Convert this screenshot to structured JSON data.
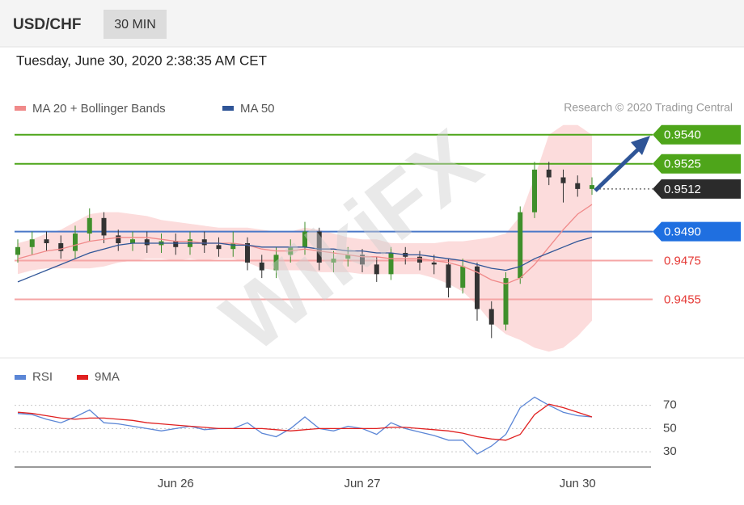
{
  "header": {
    "symbol": "USD/CHF",
    "interval": "30 MIN",
    "timestamp": "Tuesday, June 30, 2020 2:38:35 AM CET",
    "credit": "Research © 2020 Trading Central",
    "watermark": "WikiFX"
  },
  "chart_data": [
    {
      "type": "candlestick",
      "categories": [
        null,
        null,
        null,
        null,
        null,
        null,
        null,
        null,
        null,
        null,
        null,
        "Jun 26",
        null,
        null,
        null,
        null,
        null,
        null,
        null,
        null,
        null,
        null,
        null,
        null,
        "Jun 27",
        null,
        null,
        null,
        null,
        null,
        null,
        null,
        null,
        null,
        null,
        null,
        null,
        null,
        null,
        "Jun 30",
        null
      ],
      "open": [
        0.9478,
        0.9482,
        0.9486,
        0.9484,
        0.948,
        0.9489,
        0.9497,
        0.9488,
        0.9484,
        0.9486,
        0.9483,
        0.9485,
        0.9482,
        0.9486,
        0.9483,
        0.9481,
        0.9484,
        0.9474,
        0.947,
        0.9478,
        0.9482,
        0.949,
        0.9474,
        0.9476,
        0.9478,
        0.9473,
        0.9468,
        0.9479,
        0.9477,
        0.9474,
        0.9473,
        0.9461,
        0.9472,
        0.945,
        0.9442,
        0.9466,
        0.95,
        0.9522,
        0.9518,
        0.9515,
        0.9512
      ],
      "high": [
        0.9486,
        0.949,
        0.949,
        0.9488,
        0.9493,
        0.9502,
        0.95,
        0.9491,
        0.949,
        0.949,
        0.9489,
        0.9489,
        0.949,
        0.949,
        0.9487,
        0.949,
        0.9487,
        0.9478,
        0.9482,
        0.9486,
        0.9495,
        0.9492,
        0.948,
        0.9482,
        0.9481,
        0.9477,
        0.9482,
        0.9482,
        0.948,
        0.9478,
        0.9476,
        0.9476,
        0.9474,
        0.9454,
        0.9469,
        0.9503,
        0.9526,
        0.9526,
        0.9522,
        0.9519,
        0.9518
      ],
      "low": [
        0.9474,
        0.9478,
        0.948,
        0.9476,
        0.9476,
        0.9485,
        0.9484,
        0.948,
        0.948,
        0.9479,
        0.9479,
        0.9478,
        0.9478,
        0.9479,
        0.9477,
        0.9477,
        0.947,
        0.9466,
        0.9466,
        0.9474,
        0.9478,
        0.947,
        0.9469,
        0.9472,
        0.9469,
        0.9464,
        0.9465,
        0.9473,
        0.947,
        0.9468,
        0.9456,
        0.9458,
        0.9444,
        0.9435,
        0.9439,
        0.9463,
        0.9497,
        0.9514,
        0.9505,
        0.9508,
        0.9509
      ],
      "close": [
        0.9482,
        0.9486,
        0.9484,
        0.948,
        0.9489,
        0.9497,
        0.9488,
        0.9484,
        0.9486,
        0.9483,
        0.9485,
        0.9482,
        0.9486,
        0.9483,
        0.9481,
        0.9484,
        0.9474,
        0.947,
        0.9478,
        0.9482,
        0.949,
        0.9474,
        0.9476,
        0.9478,
        0.9473,
        0.9468,
        0.9479,
        0.9477,
        0.9474,
        0.9473,
        0.9461,
        0.9472,
        0.945,
        0.9442,
        0.9466,
        0.95,
        0.9522,
        0.9518,
        0.9515,
        0.9512,
        0.9514
      ],
      "up_color": "#3f8f2b",
      "down_color": "#333333",
      "ylim": [
        0.9426,
        0.9547
      ],
      "series": [
        {
          "name": "MA 20 + Bollinger Bands",
          "color": "#f08a8a",
          "band_color": "#fbd3d3",
          "values": [
            0.9476,
            0.9478,
            0.948,
            0.9481,
            0.9483,
            0.9485,
            0.9486,
            0.9487,
            0.9487,
            0.9487,
            0.9486,
            0.9485,
            0.9485,
            0.9484,
            0.9484,
            0.9484,
            0.9483,
            0.9481,
            0.948,
            0.948,
            0.9481,
            0.948,
            0.9479,
            0.9478,
            0.9477,
            0.9477,
            0.9476,
            0.9476,
            0.9476,
            0.9475,
            0.9474,
            0.9472,
            0.9469,
            0.9465,
            0.9463,
            0.9466,
            0.9473,
            0.9482,
            0.9491,
            0.9499,
            0.9504
          ],
          "upper": [
            0.9484,
            0.9486,
            0.9489,
            0.9491,
            0.9495,
            0.9499,
            0.95,
            0.95,
            0.9499,
            0.9498,
            0.9496,
            0.9495,
            0.9494,
            0.9493,
            0.9492,
            0.9492,
            0.9492,
            0.9491,
            0.949,
            0.949,
            0.9492,
            0.9491,
            0.9489,
            0.9487,
            0.9486,
            0.9486,
            0.9484,
            0.9484,
            0.9484,
            0.9484,
            0.9485,
            0.9485,
            0.9486,
            0.9487,
            0.9489,
            0.9498,
            0.9518,
            0.954,
            0.9545,
            0.9545,
            0.954
          ],
          "lower": [
            0.9468,
            0.947,
            0.9471,
            0.9471,
            0.9471,
            0.9471,
            0.9472,
            0.9474,
            0.9475,
            0.9476,
            0.9476,
            0.9475,
            0.9476,
            0.9475,
            0.9476,
            0.9476,
            0.9474,
            0.9471,
            0.947,
            0.947,
            0.947,
            0.9469,
            0.9469,
            0.9469,
            0.9468,
            0.9468,
            0.9468,
            0.9468,
            0.9468,
            0.9466,
            0.9463,
            0.9459,
            0.9452,
            0.9443,
            0.9437,
            0.9434,
            0.943,
            0.9428,
            0.943,
            0.9436,
            0.9444
          ]
        },
        {
          "name": "MA 50",
          "color": "#2f5597",
          "values": [
            0.9464,
            0.9467,
            0.947,
            0.9473,
            0.9476,
            0.9479,
            0.9481,
            0.9483,
            0.9484,
            0.9484,
            0.9484,
            0.9484,
            0.9484,
            0.9484,
            0.9484,
            0.9483,
            0.9483,
            0.9482,
            0.9482,
            0.9482,
            0.9482,
            0.9481,
            0.9481,
            0.948,
            0.948,
            0.9479,
            0.9479,
            0.9478,
            0.9478,
            0.9477,
            0.9476,
            0.9475,
            0.9473,
            0.9471,
            0.947,
            0.9472,
            0.9476,
            0.9479,
            0.9482,
            0.9485,
            0.9487
          ]
        }
      ],
      "levels": [
        {
          "value": 0.954,
          "label": "0.9540",
          "color": "#4ea51a",
          "line_color": "#4ea51a",
          "line": "solid",
          "box": true
        },
        {
          "value": 0.9525,
          "label": "0.9525",
          "color": "#4ea51a",
          "line_color": "#4ea51a",
          "line": "solid",
          "box": true
        },
        {
          "value": 0.9512,
          "label": "0.9512",
          "color": "#2b2b2b",
          "line_color": "#555555",
          "line": "dotted",
          "box": true
        },
        {
          "value": 0.949,
          "label": "0.9490",
          "color": "#1f6fe0",
          "line_color": "#4a78c8",
          "line": "solid",
          "box": true
        },
        {
          "value": 0.9475,
          "label": "0.9475",
          "color": "#e53935",
          "line_color": "#f5a5a5",
          "line": "solid",
          "box": false
        },
        {
          "value": 0.9455,
          "label": "0.9455",
          "color": "#e53935",
          "line_color": "#f5a5a5",
          "line": "solid",
          "box": false
        }
      ]
    },
    {
      "type": "line",
      "ylim": [
        19,
        85
      ],
      "yticks": [
        30,
        50,
        70
      ],
      "series": [
        {
          "name": "RSI",
          "color": "#5b86d6",
          "values": [
            63,
            62,
            58,
            55,
            60,
            66,
            55,
            54,
            52,
            50,
            48,
            50,
            52,
            49,
            50,
            50,
            55,
            46,
            43,
            50,
            60,
            50,
            48,
            52,
            50,
            45,
            55,
            50,
            47,
            44,
            40,
            40,
            28,
            35,
            45,
            68,
            77,
            70,
            64,
            61,
            60
          ]
        },
        {
          "name": "9MA",
          "color": "#e02020",
          "values": [
            64,
            63,
            61,
            59,
            58,
            59,
            59,
            58,
            57,
            55,
            54,
            53,
            52,
            51,
            50,
            50,
            50,
            50,
            49,
            48,
            49,
            50,
            50,
            50,
            50,
            50,
            51,
            51,
            50,
            49,
            48,
            46,
            43,
            41,
            40,
            45,
            62,
            71,
            68,
            64,
            60
          ]
        }
      ]
    }
  ]
}
